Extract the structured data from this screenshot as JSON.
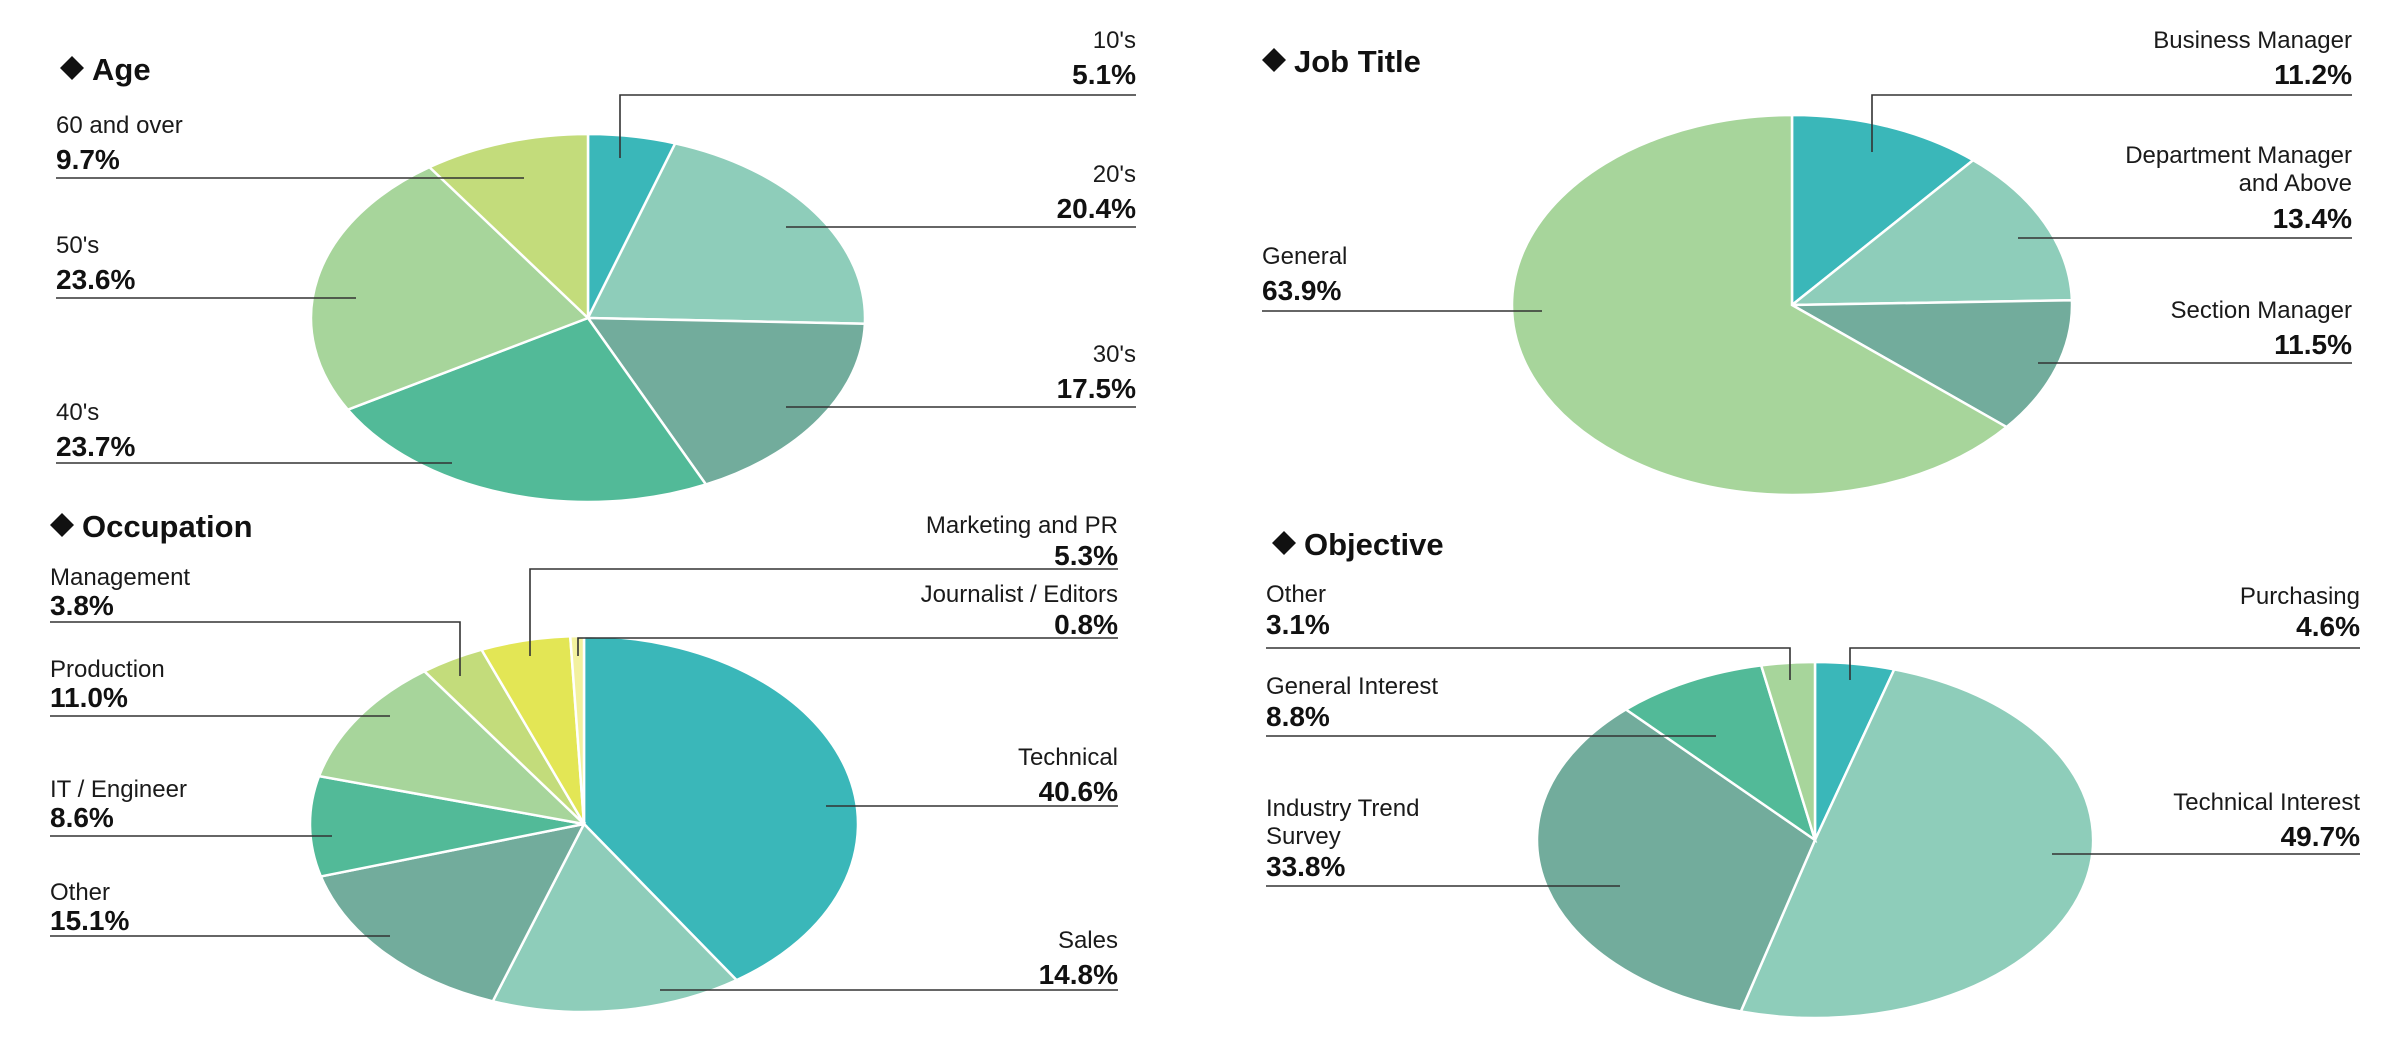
{
  "chart_data": [
    {
      "type": "pie",
      "title": "Age",
      "slices": [
        {
          "label": "10's",
          "value": 5.1,
          "display": "5.1%",
          "color": "#3ab7b9"
        },
        {
          "label": "20's",
          "value": 20.4,
          "display": "20.4%",
          "color": "#8ecdba"
        },
        {
          "label": "30's",
          "value": 17.5,
          "display": "17.5%",
          "color": "#72ac9c"
        },
        {
          "label": "40's",
          "value": 23.7,
          "display": "23.7%",
          "color": "#52ba98"
        },
        {
          "label": "50's",
          "value": 23.6,
          "display": "23.6%",
          "color": "#a7d59b"
        },
        {
          "label": "60 and over",
          "value": 9.7,
          "display": "9.7%",
          "color": "#c3dc7b"
        }
      ]
    },
    {
      "type": "pie",
      "title": "Job Title",
      "slices": [
        {
          "label": "Business Manager",
          "value": 11.2,
          "display": "11.2%",
          "color": "#3ab7b9"
        },
        {
          "label": "Department Manager and Above",
          "value": 13.4,
          "display": "13.4%",
          "color": "#8ecdba"
        },
        {
          "label": "Section Manager",
          "value": 11.5,
          "display": "11.5%",
          "color": "#72ac9c"
        },
        {
          "label": "General",
          "value": 63.9,
          "display": "63.9%",
          "color": "#a7d59b"
        }
      ]
    },
    {
      "type": "pie",
      "title": "Occupation",
      "slices": [
        {
          "label": "Technical",
          "value": 40.6,
          "display": "40.6%",
          "color": "#3ab7b9"
        },
        {
          "label": "Sales",
          "value": 14.8,
          "display": "14.8%",
          "color": "#8ecdba"
        },
        {
          "label": "Other",
          "value": 15.1,
          "display": "15.1%",
          "color": "#72ac9c"
        },
        {
          "label": "IT / Engineer",
          "value": 8.6,
          "display": "8.6%",
          "color": "#52ba98"
        },
        {
          "label": "Production",
          "value": 11.0,
          "display": "11.0%",
          "color": "#a7d59b"
        },
        {
          "label": "Management",
          "value": 3.8,
          "display": "3.8%",
          "color": "#c3dc7b"
        },
        {
          "label": "Marketing and PR",
          "value": 5.3,
          "display": "5.3%",
          "color": "#e3e655"
        },
        {
          "label": "Journalist / Editors",
          "value": 0.8,
          "display": "0.8%",
          "color": "#f3f19f"
        }
      ]
    },
    {
      "type": "pie",
      "title": "Objective",
      "slices": [
        {
          "label": "Purchasing",
          "value": 4.6,
          "display": "4.6%",
          "color": "#3ab7b9"
        },
        {
          "label": "Technical Interest",
          "value": 49.7,
          "display": "49.7%",
          "color": "#8ecdba"
        },
        {
          "label": "Industry Trend Survey",
          "value": 33.8,
          "display": "33.8%",
          "color": "#72ac9c"
        },
        {
          "label": "General Interest",
          "value": 8.8,
          "display": "8.8%",
          "color": "#52ba98"
        },
        {
          "label": "Other",
          "value": 3.1,
          "display": "3.1%",
          "color": "#a7d59b"
        }
      ]
    }
  ]
}
